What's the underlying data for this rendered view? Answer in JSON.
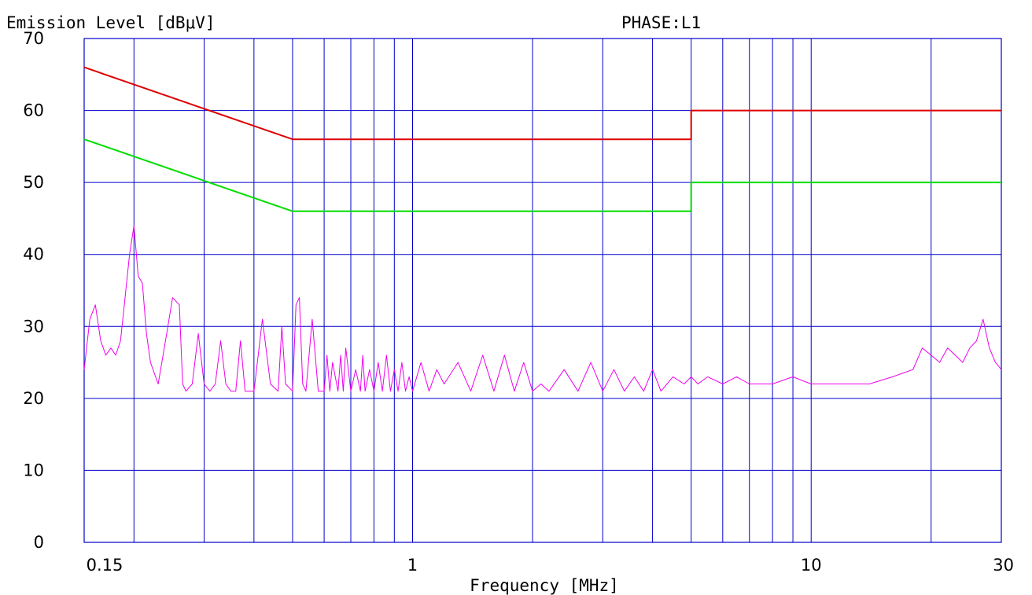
{
  "chart_data": {
    "type": "line",
    "title": "PHASE:L1",
    "ylabel": "Emission Level [dBμV]",
    "xlabel": "Frequency [MHz]",
    "x_scale": "log",
    "xlim": [
      0.15,
      30
    ],
    "ylim": [
      0,
      70
    ],
    "grid": true,
    "y_ticks": [
      0,
      10,
      20,
      30,
      40,
      50,
      60,
      70
    ],
    "y_tick_labels": [
      "0",
      "10",
      "20",
      "30",
      "40",
      "50",
      "60",
      "70"
    ],
    "x_ticks": [
      0.15,
      1,
      10,
      30
    ],
    "x_tick_labels": [
      "0.15",
      "1",
      "10",
      "30"
    ],
    "x_gridlines": [
      0.2,
      0.3,
      0.4,
      0.5,
      0.6,
      0.7,
      0.8,
      0.9,
      1,
      2,
      3,
      4,
      5,
      6,
      7,
      8,
      9,
      10,
      20
    ],
    "colors": {
      "grid": "#0000cc",
      "limit_qp": "#dd0000",
      "limit_avg": "#00dd00",
      "measured": "#ee00ee"
    },
    "series": [
      {
        "role": "limit_qp",
        "color": "#dd0000",
        "x": [
          0.15,
          0.5,
          0.5,
          5,
          5,
          30
        ],
        "y": [
          66,
          56,
          56,
          56,
          60,
          60
        ]
      },
      {
        "role": "limit_avg",
        "color": "#00dd00",
        "x": [
          0.15,
          0.5,
          0.5,
          5,
          5,
          30
        ],
        "y": [
          56,
          46,
          46,
          46,
          50,
          50
        ]
      },
      {
        "role": "measured",
        "color": "#ee00ee",
        "x": [
          0.15,
          0.155,
          0.16,
          0.165,
          0.17,
          0.175,
          0.18,
          0.185,
          0.19,
          0.195,
          0.2,
          0.205,
          0.21,
          0.215,
          0.22,
          0.23,
          0.24,
          0.25,
          0.26,
          0.265,
          0.27,
          0.28,
          0.29,
          0.3,
          0.31,
          0.32,
          0.33,
          0.34,
          0.35,
          0.36,
          0.37,
          0.38,
          0.4,
          0.42,
          0.44,
          0.46,
          0.47,
          0.48,
          0.5,
          0.51,
          0.52,
          0.53,
          0.54,
          0.56,
          0.58,
          0.6,
          0.61,
          0.62,
          0.63,
          0.65,
          0.66,
          0.67,
          0.68,
          0.7,
          0.72,
          0.74,
          0.75,
          0.76,
          0.78,
          0.8,
          0.82,
          0.84,
          0.86,
          0.88,
          0.9,
          0.92,
          0.94,
          0.96,
          0.98,
          1.0,
          1.05,
          1.1,
          1.15,
          1.2,
          1.3,
          1.4,
          1.5,
          1.6,
          1.7,
          1.8,
          1.9,
          2.0,
          2.1,
          2.2,
          2.4,
          2.6,
          2.8,
          3.0,
          3.2,
          3.4,
          3.6,
          3.8,
          4.0,
          4.2,
          4.5,
          4.8,
          5.0,
          5.2,
          5.5,
          6.0,
          6.5,
          7.0,
          7.5,
          8.0,
          9.0,
          10.0,
          11.0,
          12.0,
          14.0,
          16.0,
          18.0,
          19.0,
          20.0,
          21.0,
          22.0,
          23.0,
          24.0,
          25.0,
          26.0,
          27.0,
          28.0,
          29.0,
          30.0
        ],
        "y": [
          24,
          31,
          33,
          28,
          26,
          27,
          26,
          28,
          34,
          40,
          44,
          37,
          36,
          29,
          25,
          22,
          28,
          34,
          33,
          22,
          21,
          22,
          29,
          22,
          21,
          22,
          28,
          22,
          21,
          21,
          28,
          21,
          21,
          31,
          22,
          21,
          30,
          22,
          21,
          33,
          34,
          22,
          21,
          31,
          21,
          21,
          26,
          21,
          25,
          21,
          26,
          21,
          27,
          21,
          24,
          21,
          26,
          21,
          24,
          21,
          25,
          21,
          26,
          21,
          24,
          21,
          25,
          21,
          23,
          21,
          25,
          21,
          24,
          22,
          25,
          21,
          26,
          21,
          26,
          21,
          25,
          21,
          22,
          21,
          24,
          21,
          25,
          21,
          24,
          21,
          23,
          21,
          24,
          21,
          23,
          22,
          23,
          22,
          23,
          22,
          23,
          22,
          22,
          22,
          23,
          22,
          22,
          22,
          22,
          23,
          24,
          27,
          26,
          25,
          27,
          26,
          25,
          27,
          28,
          31,
          27,
          25,
          24
        ]
      }
    ]
  }
}
